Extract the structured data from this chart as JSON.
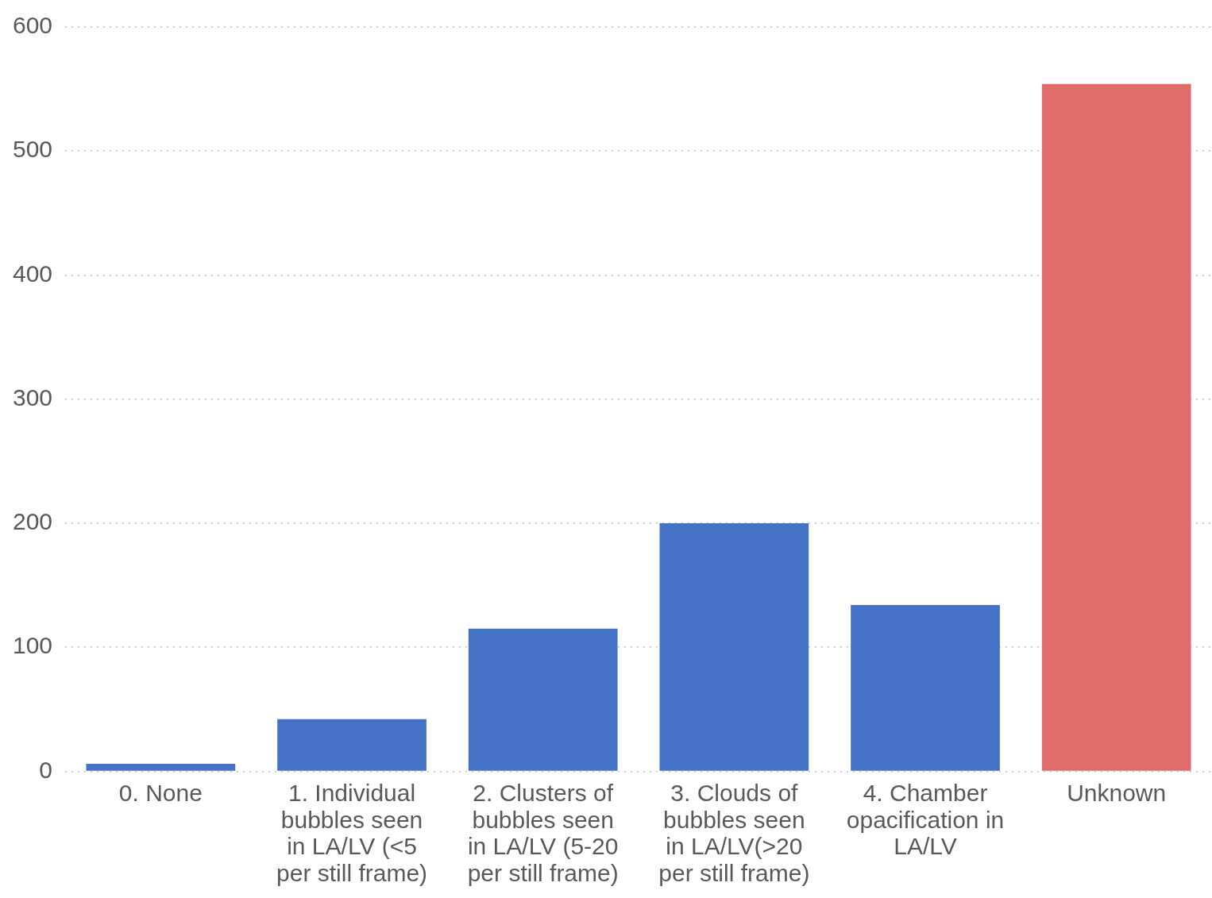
{
  "chart_data": {
    "type": "bar",
    "categories": [
      "0. None",
      "1. Individual bubbles seen in LA/LV (<5 per still frame)",
      "2. Clusters of bubbles seen in LA/LV (5-20 per still frame)",
      "3. Clouds of bubbles seen in LA/LV(>20 per still frame)",
      "4. Chamber opacification in LA/LV",
      "Unknown"
    ],
    "values": [
      6,
      42,
      115,
      200,
      134,
      554
    ],
    "colors": [
      "#4472c4",
      "#4472c4",
      "#4472c4",
      "#4472c4",
      "#4472c4",
      "#e06b6b"
    ],
    "ylim": [
      0,
      600
    ],
    "yticks": [
      0,
      100,
      200,
      300,
      400,
      500,
      600
    ],
    "grid": "y",
    "legend": false
  }
}
